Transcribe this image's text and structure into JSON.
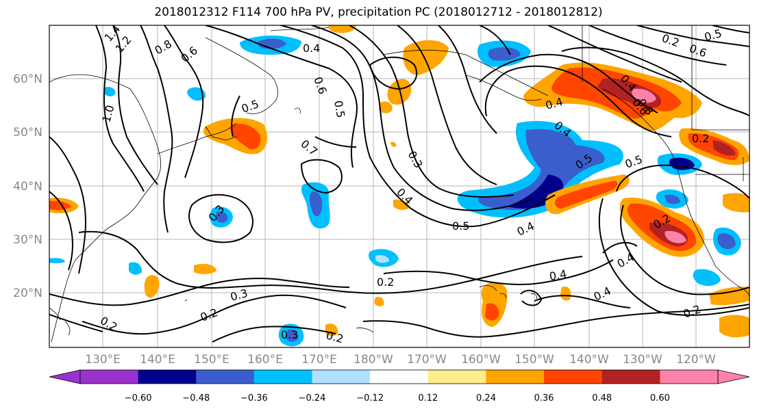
{
  "title": "2018012312 F114 700 hPa PV, precipitation PC (2018012712 - 2018012812)",
  "lat_labels": [
    "60°N",
    "50°N",
    "40°N",
    "30°N",
    "20°N"
  ],
  "lon_labels": [
    "130°E",
    "140°E",
    "150°E",
    "160°E",
    "170°E",
    "180°W",
    "170°W",
    "160°W",
    "150°W",
    "140°W",
    "130°W",
    "120°W"
  ],
  "contour_labels": [
    "1.4",
    "1.2",
    "0.8",
    "0.6",
    "1.0",
    "0.4",
    "0.6",
    "0.5",
    "0.5",
    "0.7",
    "0.3",
    "0.3",
    "0.4",
    "0.5",
    "0.4",
    "0.2",
    "0.3",
    "0.2",
    "0.2",
    "0.3",
    "0.2",
    "0.4",
    "0.4",
    "0.5",
    "0.5",
    "0.4",
    "0.6",
    "0.8",
    "0.2",
    "0.4",
    "0.4",
    "0.4",
    "0.2",
    "0.2",
    "0.6",
    "0.5",
    "0.2"
  ],
  "colorbar": {
    "colors": [
      "#9a32cd",
      "#00008b",
      "#3a5fcd",
      "#00bfff",
      "#b0e2ff",
      "#ffffff",
      "#ffec8b",
      "#ffa500",
      "#ff4500",
      "#b22222",
      "#ff82ab"
    ],
    "ticks": [
      "−0.60",
      "−0.48",
      "−0.36",
      "−0.24",
      "−0.12",
      "0.12",
      "0.24",
      "0.36",
      "0.48",
      "0.60"
    ]
  }
}
